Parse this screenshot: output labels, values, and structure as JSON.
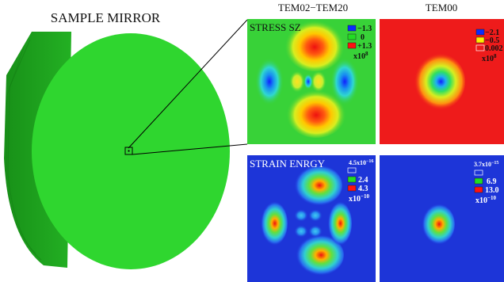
{
  "mirror": {
    "title": "SAMPLE MIRROR"
  },
  "columns": {
    "left": "TEM02−TEM20",
    "right": "TEM00"
  },
  "stress": {
    "label": "STRESS SZ",
    "left_legend": {
      "entries": [
        "−1.3",
        "0",
        "+1.3"
      ],
      "exponent_base": "x10",
      "exponent_power": "8"
    },
    "right_legend": {
      "entries": [
        "−2.1",
        "−0.5",
        "0.002"
      ],
      "exponent_base": "x10",
      "exponent_power": "8"
    }
  },
  "strain": {
    "label": "STRAIN ENRGY",
    "left_legend": {
      "top": "4.5x10",
      "top_power": "−16",
      "entries": [
        "2.4",
        "4.3"
      ],
      "exponent_base": "x10",
      "exponent_power": "−10"
    },
    "right_legend": {
      "top": "3.7x10",
      "top_power": "−15",
      "entries": [
        "6.9",
        "13.0"
      ],
      "exponent_base": "x10",
      "exponent_power": "−10"
    }
  },
  "colors": {
    "mirror_face": "#2fd62f",
    "mirror_side": "#1f9f1f",
    "stress_background": "#38d238",
    "tem00_stress_background": "#ee1b1b",
    "strain_background": "#1d35d8",
    "legend_blue": "#0b2bff",
    "legend_green": "#22dd22",
    "legend_yellow": "#ffee00",
    "legend_red": "#ff1111"
  }
}
